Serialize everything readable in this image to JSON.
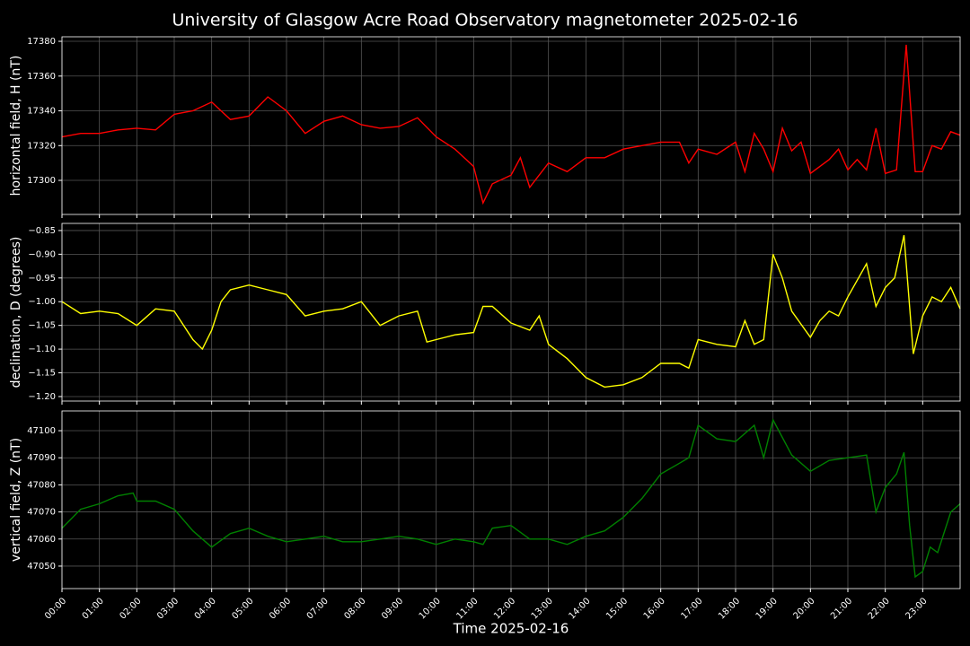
{
  "title": "University of Glasgow Acre Road Observatory magnetometer 2025-02-16",
  "chart_data": [
    {
      "type": "line",
      "ylabel": "horizontal field, H (nT)",
      "x": [
        0,
        0.5,
        1,
        1.5,
        2,
        2.5,
        3,
        3.5,
        4,
        4.5,
        5,
        5.5,
        6,
        6.5,
        7,
        7.5,
        8,
        8.5,
        9,
        9.5,
        10,
        10.5,
        11,
        11.25,
        11.5,
        12,
        12.25,
        12.5,
        13,
        13.5,
        14,
        14.5,
        15,
        15.5,
        16,
        16.5,
        16.75,
        17,
        17.5,
        18,
        18.25,
        18.5,
        18.75,
        19,
        19.25,
        19.5,
        19.75,
        20,
        20.5,
        20.75,
        21,
        21.25,
        21.5,
        21.75,
        22,
        22.3,
        22.56,
        22.8,
        23,
        23.25,
        23.5,
        23.75,
        24
      ],
      "series": [
        {
          "color": "#ff0000",
          "values": [
            17325,
            17327,
            17327,
            17329,
            17330,
            17329,
            17338,
            17340,
            17345,
            17335,
            17337,
            17348,
            17340,
            17327,
            17334,
            17337,
            17332,
            17330,
            17331,
            17336,
            17325,
            17318,
            17308,
            17287,
            17298,
            17303,
            17313,
            17296,
            17310,
            17305,
            17313,
            17313,
            17318,
            17320,
            17322,
            17322,
            17310,
            17318,
            17315,
            17322,
            17305,
            17327,
            17318,
            17305,
            17330,
            17317,
            17322,
            17304,
            17312,
            17318,
            17306,
            17312,
            17306,
            17330,
            17304,
            17306,
            17378,
            17305,
            17305,
            17320,
            17318,
            17328,
            17326
          ]
        }
      ],
      "xlim": [
        0,
        24
      ],
      "ylim": [
        17280.4,
        17382.6
      ],
      "yticks": [
        17300,
        17320,
        17340,
        17360,
        17380
      ],
      "xticks": [
        0,
        1,
        2,
        3,
        4,
        5,
        6,
        7,
        8,
        9,
        10,
        11,
        12,
        13,
        14,
        15,
        16,
        17,
        18,
        19,
        20,
        21,
        22,
        23
      ],
      "grid": true
    },
    {
      "type": "line",
      "ylabel": "declination, D (degrees)",
      "x": [
        0,
        0.5,
        1,
        1.5,
        2,
        2.5,
        3,
        3.5,
        3.75,
        4,
        4.25,
        4.5,
        5,
        5.5,
        6,
        6.5,
        7,
        7.5,
        8,
        8.5,
        9,
        9.5,
        9.75,
        10,
        10.5,
        11,
        11.25,
        11.5,
        12,
        12.5,
        12.75,
        13,
        13.5,
        14,
        14.5,
        15,
        15.5,
        16,
        16.5,
        16.75,
        17,
        17.5,
        18,
        18.25,
        18.5,
        18.75,
        19,
        19.25,
        19.5,
        20,
        20.25,
        20.5,
        20.75,
        21,
        21.5,
        21.75,
        22,
        22.25,
        22.5,
        22.75,
        23,
        23.25,
        23.5,
        23.75,
        24
      ],
      "series": [
        {
          "color": "#ffff00",
          "values": [
            -1.0,
            -1.025,
            -1.02,
            -1.025,
            -1.05,
            -1.015,
            -1.02,
            -1.08,
            -1.1,
            -1.06,
            -1.0,
            -0.975,
            -0.965,
            -0.975,
            -0.985,
            -1.03,
            -1.02,
            -1.015,
            -1.0,
            -1.05,
            -1.03,
            -1.02,
            -1.085,
            -1.08,
            -1.07,
            -1.065,
            -1.01,
            -1.01,
            -1.045,
            -1.06,
            -1.03,
            -1.09,
            -1.12,
            -1.16,
            -1.18,
            -1.175,
            -1.16,
            -1.13,
            -1.13,
            -1.14,
            -1.08,
            -1.09,
            -1.095,
            -1.04,
            -1.09,
            -1.08,
            -0.9,
            -0.95,
            -1.02,
            -1.075,
            -1.04,
            -1.02,
            -1.03,
            -0.99,
            -0.92,
            -1.01,
            -0.97,
            -0.95,
            -0.86,
            -1.11,
            -1.03,
            -0.99,
            -1.0,
            -0.97,
            -1.015
          ]
        }
      ],
      "xlim": [
        0,
        24
      ],
      "ylim": [
        -1.2095,
        -0.835
      ],
      "yticks": [
        {
          "value": -1.2,
          "label": "−1.20"
        },
        {
          "value": -1.15,
          "label": "−1.15"
        },
        {
          "value": -1.1,
          "label": "−1.10"
        },
        {
          "value": -1.05,
          "label": "−1.05"
        },
        {
          "value": -1.0,
          "label": "−1.00"
        },
        {
          "value": -0.95,
          "label": "−0.95"
        },
        {
          "value": -0.9,
          "label": "−0.90"
        },
        {
          "value": -0.85,
          "label": "−0.85"
        }
      ],
      "xticks": [
        0,
        1,
        2,
        3,
        4,
        5,
        6,
        7,
        8,
        9,
        10,
        11,
        12,
        13,
        14,
        15,
        16,
        17,
        18,
        19,
        20,
        21,
        22,
        23
      ],
      "grid": true
    },
    {
      "type": "line",
      "ylabel": "vertical field, Z (nT)",
      "xlabel": "Time 2025-02-16",
      "x": [
        0,
        0.5,
        1,
        1.5,
        1.9,
        2,
        2.5,
        3,
        3.5,
        4,
        4.5,
        5,
        5.5,
        6,
        6.5,
        7,
        7.5,
        8,
        8.5,
        9,
        9.5,
        10,
        10.5,
        11,
        11.25,
        11.5,
        12,
        12.5,
        13,
        13.5,
        14,
        14.5,
        15,
        15.5,
        16,
        16.5,
        16.75,
        17,
        17.5,
        18,
        18.5,
        18.75,
        19,
        19.5,
        20,
        20.5,
        21,
        21.5,
        21.75,
        22,
        22.3,
        22.5,
        22.65,
        22.8,
        23,
        23.2,
        23.4,
        23.75,
        24
      ],
      "series": [
        {
          "color": "#008000",
          "values": [
            47064,
            47071,
            47073,
            47076,
            47077,
            47074,
            47074,
            47071,
            47063,
            47057,
            47062,
            47064,
            47061,
            47059,
            47060,
            47061,
            47059,
            47059,
            47060,
            47061,
            47060,
            47058,
            47060,
            47059,
            47058,
            47064,
            47065,
            47060,
            47060,
            47058,
            47061,
            47063,
            47068,
            47075,
            47084,
            47088,
            47090,
            47102,
            47097,
            47096,
            47102,
            47090,
            47104,
            47091,
            47085,
            47089,
            47090,
            47091,
            47070,
            47079,
            47084,
            47092,
            47065,
            47046,
            47048,
            47057,
            47055,
            47070,
            47073
          ]
        }
      ],
      "xlim": [
        0,
        24
      ],
      "ylim": [
        47041.7,
        47107.3
      ],
      "yticks": [
        47050,
        47060,
        47070,
        47080,
        47090,
        47100
      ],
      "xticks": [
        {
          "value": 0,
          "label": "00:00"
        },
        {
          "value": 1,
          "label": "01:00"
        },
        {
          "value": 2,
          "label": "02:00"
        },
        {
          "value": 3,
          "label": "03:00"
        },
        {
          "value": 4,
          "label": "04:00"
        },
        {
          "value": 5,
          "label": "05:00"
        },
        {
          "value": 6,
          "label": "06:00"
        },
        {
          "value": 7,
          "label": "07:00"
        },
        {
          "value": 8,
          "label": "08:00"
        },
        {
          "value": 9,
          "label": "09:00"
        },
        {
          "value": 10,
          "label": "10:00"
        },
        {
          "value": 11,
          "label": "11:00"
        },
        {
          "value": 12,
          "label": "12:00"
        },
        {
          "value": 13,
          "label": "13:00"
        },
        {
          "value": 14,
          "label": "14:00"
        },
        {
          "value": 15,
          "label": "15:00"
        },
        {
          "value": 16,
          "label": "16:00"
        },
        {
          "value": 17,
          "label": "17:00"
        },
        {
          "value": 18,
          "label": "18:00"
        },
        {
          "value": 19,
          "label": "19:00"
        },
        {
          "value": 20,
          "label": "20:00"
        },
        {
          "value": 21,
          "label": "21:00"
        },
        {
          "value": 22,
          "label": "22:00"
        },
        {
          "value": 23,
          "label": "23:00"
        }
      ],
      "grid": true
    }
  ]
}
